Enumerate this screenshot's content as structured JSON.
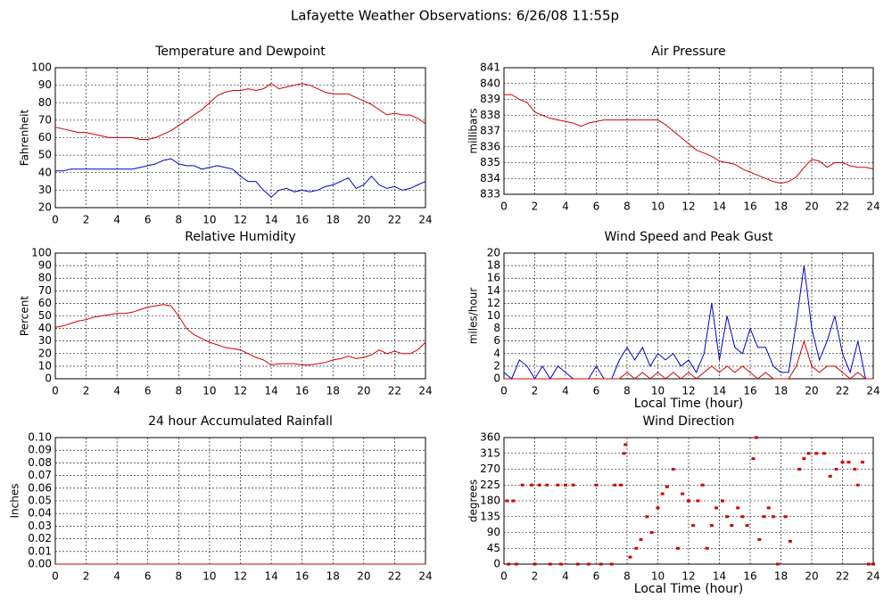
{
  "title": "Lafayette Weather Observations: 6/26/08 11:55p",
  "chart_data": [
    {
      "type": "line",
      "title": "Temperature and Dewpoint",
      "ylabel": "Fahrenheit",
      "x": [
        0,
        0.5,
        1,
        1.5,
        2,
        2.5,
        3,
        3.5,
        4,
        4.5,
        5,
        5.5,
        6,
        6.5,
        7,
        7.5,
        8,
        8.5,
        9,
        9.5,
        10,
        10.5,
        11,
        11.5,
        12,
        12.5,
        13,
        13.5,
        14,
        14.5,
        15,
        15.5,
        16,
        16.5,
        17,
        17.5,
        18,
        18.5,
        19,
        19.5,
        20,
        20.5,
        21,
        21.5,
        22,
        22.5,
        23,
        23.5,
        24
      ],
      "series": [
        {
          "color": "#d00000",
          "values": [
            66,
            65,
            64,
            63,
            63,
            62,
            61,
            60,
            60,
            60,
            60,
            59,
            59,
            60,
            62,
            64,
            67,
            70,
            73,
            76,
            80,
            84,
            86,
            87,
            87,
            88,
            87,
            88,
            91,
            88,
            89,
            90,
            91,
            90,
            88,
            86,
            85,
            85,
            85,
            83,
            81,
            79,
            76,
            73,
            74,
            73,
            73,
            71,
            68
          ]
        },
        {
          "color": "#0000c8",
          "values": [
            41,
            41,
            42,
            42,
            42,
            42,
            42,
            42,
            42,
            42,
            42,
            43,
            44,
            45,
            47,
            48,
            45,
            44,
            44,
            42,
            43,
            44,
            43,
            42,
            38,
            35,
            35,
            30,
            26,
            30,
            31,
            29,
            30,
            29,
            30,
            32,
            33,
            35,
            37,
            31,
            33,
            38,
            33,
            31,
            32,
            30,
            31,
            33,
            35
          ]
        }
      ],
      "xlim": [
        0,
        24
      ],
      "xticks": [
        0,
        2,
        4,
        6,
        8,
        10,
        12,
        14,
        16,
        18,
        20,
        22,
        24
      ],
      "ylim": [
        20,
        100
      ],
      "yticks": [
        20,
        30,
        40,
        50,
        60,
        70,
        80,
        90,
        100
      ],
      "grid": true
    },
    {
      "type": "line",
      "title": "Air Pressure",
      "ylabel": "millibars",
      "x": [
        0,
        0.5,
        1,
        1.5,
        2,
        2.5,
        3,
        3.5,
        4,
        4.5,
        5,
        5.5,
        6,
        6.5,
        7,
        7.5,
        8,
        8.5,
        9,
        9.5,
        10,
        10.5,
        11,
        11.5,
        12,
        12.5,
        13,
        13.5,
        14,
        14.5,
        15,
        15.5,
        16,
        16.5,
        17,
        17.5,
        18,
        18.5,
        19,
        19.5,
        20,
        20.5,
        21,
        21.5,
        22,
        22.5,
        23,
        23.5,
        24
      ],
      "series": [
        {
          "color": "#d00000",
          "values": [
            839.3,
            839.3,
            839.0,
            838.8,
            838.2,
            838.0,
            837.8,
            837.7,
            837.6,
            837.5,
            837.3,
            837.5,
            837.6,
            837.7,
            837.7,
            837.7,
            837.7,
            837.7,
            837.7,
            837.7,
            837.7,
            837.4,
            837.0,
            836.6,
            836.2,
            835.8,
            835.6,
            835.4,
            835.1,
            835.0,
            834.9,
            834.6,
            834.4,
            834.2,
            834.0,
            833.8,
            833.7,
            833.8,
            834.1,
            834.7,
            835.2,
            835.1,
            834.7,
            835.0,
            835.0,
            834.8,
            834.7,
            834.7,
            834.6
          ]
        }
      ],
      "xlim": [
        0,
        24
      ],
      "xticks": [
        0,
        2,
        4,
        6,
        8,
        10,
        12,
        14,
        16,
        18,
        20,
        22,
        24
      ],
      "ylim": [
        833,
        841
      ],
      "yticks": [
        833,
        834,
        835,
        836,
        837,
        838,
        839,
        840,
        841
      ],
      "grid": true
    },
    {
      "type": "line",
      "title": "Relative Humidity",
      "ylabel": "Percent",
      "x": [
        0,
        0.5,
        1,
        1.5,
        2,
        2.5,
        3,
        3.5,
        4,
        4.5,
        5,
        5.5,
        6,
        6.5,
        7,
        7.5,
        8,
        8.5,
        9,
        9.5,
        10,
        10.5,
        11,
        11.5,
        12,
        12.5,
        13,
        13.5,
        14,
        14.5,
        15,
        15.5,
        16,
        16.5,
        17,
        17.5,
        18,
        18.5,
        19,
        19.5,
        20,
        20.5,
        21,
        21.5,
        22,
        22.5,
        23,
        23.5,
        24
      ],
      "series": [
        {
          "color": "#d00000",
          "values": [
            41,
            42,
            44,
            46,
            47,
            49,
            50,
            51,
            52,
            52,
            53,
            55,
            57,
            58,
            59,
            58,
            50,
            40,
            35,
            32,
            29,
            27,
            25,
            24,
            23,
            20,
            17,
            15,
            11,
            12,
            12,
            12,
            11,
            11,
            12,
            13,
            15,
            16,
            18,
            16,
            17,
            19,
            23,
            20,
            22,
            20,
            20,
            23,
            29
          ]
        }
      ],
      "xlim": [
        0,
        24
      ],
      "xticks": [
        0,
        2,
        4,
        6,
        8,
        10,
        12,
        14,
        16,
        18,
        20,
        22,
        24
      ],
      "ylim": [
        0,
        100
      ],
      "yticks": [
        0,
        10,
        20,
        30,
        40,
        50,
        60,
        70,
        80,
        90,
        100
      ],
      "grid": true
    },
    {
      "type": "line",
      "title": "Wind Speed and Peak Gust",
      "ylabel": "miles/hour",
      "xlabel": "Local Time (hour)",
      "x": [
        0,
        0.5,
        1,
        1.5,
        2,
        2.5,
        3,
        3.5,
        4,
        4.5,
        5,
        5.5,
        6,
        6.5,
        7,
        7.5,
        8,
        8.5,
        9,
        9.5,
        10,
        10.5,
        11,
        11.5,
        12,
        12.5,
        13,
        13.5,
        14,
        14.5,
        15,
        15.5,
        16,
        16.5,
        17,
        17.5,
        18,
        18.5,
        19,
        19.5,
        20,
        20.5,
        21,
        21.5,
        22,
        22.5,
        23,
        23.5,
        24
      ],
      "series": [
        {
          "color": "#0000c8",
          "values": [
            1,
            0,
            3,
            2,
            0,
            2,
            0,
            2,
            1,
            0,
            0,
            0,
            2,
            0,
            0,
            3,
            5,
            3,
            5,
            2,
            4,
            3,
            4,
            2,
            3,
            1,
            4,
            12,
            3,
            10,
            5,
            4,
            8,
            5,
            5,
            2,
            1,
            1,
            9,
            18,
            8,
            3,
            6,
            10,
            4,
            1,
            6,
            0,
            0
          ]
        },
        {
          "color": "#d00000",
          "values": [
            0,
            0,
            0,
            0,
            0,
            0,
            0,
            0,
            0,
            0,
            0,
            0,
            0,
            0,
            0,
            0,
            1,
            0,
            1,
            0,
            1,
            0,
            1,
            0,
            1,
            0,
            1,
            2,
            1,
            2,
            1,
            2,
            1,
            0,
            1,
            0,
            0,
            0,
            2,
            6,
            2,
            1,
            2,
            2,
            1,
            0,
            1,
            0,
            0
          ]
        }
      ],
      "xlim": [
        0,
        24
      ],
      "xticks": [
        0,
        2,
        4,
        6,
        8,
        10,
        12,
        14,
        16,
        18,
        20,
        22,
        24
      ],
      "ylim": [
        0,
        20
      ],
      "yticks": [
        0,
        2,
        4,
        6,
        8,
        10,
        12,
        14,
        16,
        18,
        20
      ],
      "grid": true
    },
    {
      "type": "line",
      "title": "24 hour Accumulated Rainfall",
      "ylabel": "Inches",
      "x": [
        0,
        24
      ],
      "series": [
        {
          "color": "#d00000",
          "values": [
            0,
            0
          ]
        }
      ],
      "xlim": [
        0,
        24
      ],
      "xticks": [
        0,
        2,
        4,
        6,
        8,
        10,
        12,
        14,
        16,
        18,
        20,
        22,
        24
      ],
      "ylim": [
        0,
        0.1
      ],
      "yticks": [
        {
          "value": 0,
          "label": "0.00"
        },
        {
          "value": 0.01,
          "label": "0.01"
        },
        {
          "value": 0.02,
          "label": "0.02"
        },
        {
          "value": 0.03,
          "label": "0.03"
        },
        {
          "value": 0.04,
          "label": "0.04"
        },
        {
          "value": 0.05,
          "label": "0.05"
        },
        {
          "value": 0.06,
          "label": "0.06"
        },
        {
          "value": 0.07,
          "label": "0.07"
        },
        {
          "value": 0.08,
          "label": "0.08"
        },
        {
          "value": 0.09,
          "label": "0.09"
        },
        {
          "value": 0.1,
          "label": "0.10"
        }
      ],
      "grid": true
    },
    {
      "type": "scatter",
      "title": "Wind Direction",
      "ylabel": "degrees",
      "xlabel": "Local Time (hour)",
      "x": [
        0.2,
        0.6,
        0.3,
        0.8,
        1.2,
        1.8,
        2.0,
        2.3,
        2.8,
        3.0,
        3.5,
        3.7,
        4.0,
        4.5,
        4.8,
        5.5,
        6.0,
        6.3,
        7.0,
        7.2,
        7.6,
        7.8,
        7.9,
        8.2,
        8.6,
        8.9,
        9.3,
        9.6,
        10.0,
        10.3,
        10.6,
        11.0,
        11.3,
        11.6,
        12.0,
        12.3,
        12.6,
        12.9,
        13.2,
        13.5,
        13.8,
        14.2,
        14.5,
        14.8,
        15.2,
        15.5,
        15.8,
        16.2,
        16.4,
        16.6,
        16.9,
        17.2,
        17.5,
        17.8,
        18.3,
        18.6,
        19.2,
        19.5,
        19.8,
        20.3,
        20.8,
        21.2,
        21.6,
        22.0,
        22.4,
        22.8,
        23.0,
        23.3,
        23.7,
        24
      ],
      "series": [
        {
          "color": "#d00000",
          "values": [
            180,
            180,
            0,
            0,
            225,
            225,
            0,
            225,
            225,
            0,
            225,
            0,
            225,
            225,
            0,
            0,
            225,
            0,
            0,
            225,
            225,
            315,
            340,
            20,
            45,
            70,
            135,
            90,
            160,
            200,
            220,
            270,
            45,
            200,
            180,
            110,
            180,
            225,
            45,
            110,
            160,
            180,
            135,
            110,
            160,
            135,
            110,
            300,
            360,
            70,
            135,
            160,
            135,
            0,
            135,
            65,
            270,
            300,
            315,
            315,
            315,
            250,
            270,
            290,
            290,
            270,
            225,
            290,
            0,
            0
          ]
        }
      ],
      "xlim": [
        0,
        24
      ],
      "xticks": [
        0,
        2,
        4,
        6,
        8,
        10,
        12,
        14,
        16,
        18,
        20,
        22,
        24
      ],
      "ylim": [
        0,
        360
      ],
      "yticks": [
        0,
        45,
        90,
        135,
        180,
        225,
        270,
        315,
        360
      ],
      "grid": true
    }
  ]
}
